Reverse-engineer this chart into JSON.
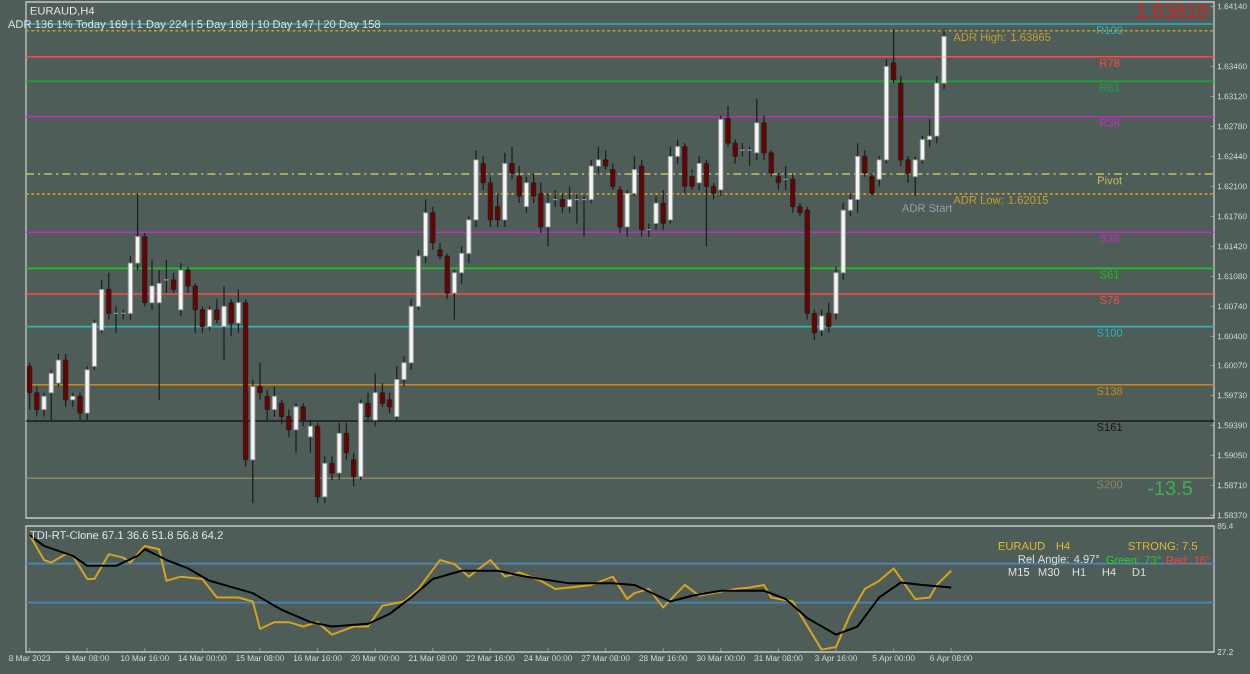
{
  "chart_data": [
    {
      "type": "candlestick",
      "title": "EURAUD,H4",
      "categories": [
        null,
        null,
        null,
        null,
        null,
        null,
        null,
        null,
        null,
        null,
        null,
        null,
        null,
        null,
        null,
        null,
        null,
        null,
        null,
        null,
        null,
        null,
        null,
        null,
        null,
        null,
        null,
        null,
        null,
        null,
        null,
        null,
        null,
        null,
        null,
        null,
        null,
        null,
        null,
        null,
        null,
        null,
        null,
        null,
        null,
        null,
        null,
        null,
        null,
        null,
        null,
        null,
        null,
        null,
        null,
        null,
        null,
        null,
        null,
        null,
        null,
        null,
        null,
        null,
        null,
        null,
        null,
        null,
        null,
        null,
        null,
        null,
        null,
        null,
        null,
        null,
        null,
        null,
        null,
        null,
        null,
        null,
        null,
        null,
        null,
        null,
        null,
        null,
        null,
        null,
        null,
        null,
        null,
        null,
        null,
        null,
        null,
        null,
        null,
        null,
        null,
        null,
        null,
        null,
        null,
        null,
        null,
        null,
        null,
        null,
        null,
        null,
        null,
        null,
        null,
        null,
        null,
        null,
        null,
        null,
        null,
        null,
        null,
        null,
        null,
        null,
        null,
        null,
        null,
        null,
        null,
        null,
        null,
        null,
        null,
        null,
        null,
        null,
        null,
        null,
        null,
        null,
        null,
        null,
        null,
        null,
        null,
        null,
        null,
        null,
        null,
        null,
        null,
        null,
        null,
        null,
        null,
        null,
        null,
        null,
        null,
        null,
        null,
        null,
        null
      ],
      "ohlc": [
        [
          1.6006,
          1.601,
          1.5957,
          1.5976
        ],
        [
          1.5976,
          1.5983,
          1.5949,
          1.5957
        ],
        [
          1.5957,
          1.5976,
          1.5949,
          1.5972
        ],
        [
          1.5976,
          1.6002,
          1.5945,
          1.5998
        ],
        [
          1.5987,
          1.602,
          1.5983,
          1.6013
        ],
        [
          1.6013,
          1.602,
          1.596,
          1.5968
        ],
        [
          1.5968,
          1.5976,
          1.596,
          1.5972
        ],
        [
          1.5972,
          1.5976,
          1.5945,
          1.5953
        ],
        [
          1.5953,
          1.6006,
          1.5945,
          1.6002
        ],
        [
          1.6006,
          1.6059,
          1.6002,
          1.6055
        ],
        [
          1.6047,
          1.6104,
          1.6044,
          1.6093
        ],
        [
          1.6093,
          1.6112,
          1.6059,
          1.6066
        ],
        [
          1.6066,
          1.6074,
          1.6044,
          1.6066
        ],
        [
          1.6066,
          1.607,
          1.6059,
          1.6066
        ],
        [
          1.6066,
          1.6131,
          1.6059,
          1.6123
        ],
        [
          1.6123,
          1.6202,
          1.6115,
          1.6153
        ],
        [
          1.6153,
          1.6157,
          1.6074,
          1.6078
        ],
        [
          1.6078,
          1.6127,
          1.607,
          1.6097
        ],
        [
          1.6078,
          1.6115,
          1.5968,
          1.61
        ],
        [
          1.6104,
          1.6127,
          1.6089,
          1.6104
        ],
        [
          1.6104,
          1.6112,
          1.6089,
          1.6093
        ],
        [
          1.607,
          1.6123,
          1.6063,
          1.6115
        ],
        [
          1.6115,
          1.6119,
          1.6089,
          1.6097
        ],
        [
          1.6097,
          1.61,
          1.6044,
          1.607
        ],
        [
          1.607,
          1.6074,
          1.6044,
          1.6051
        ],
        [
          1.6051,
          1.6074,
          1.6047,
          1.607
        ],
        [
          1.607,
          1.6082,
          1.6055,
          1.6059
        ],
        [
          1.6051,
          1.6097,
          1.6013,
          1.6074
        ],
        [
          1.6078,
          1.6082,
          1.604,
          1.6055
        ],
        [
          1.6055,
          1.6093,
          1.6044,
          1.6078
        ],
        [
          1.6078,
          1.6082,
          1.5892,
          1.59
        ],
        [
          1.59,
          1.5991,
          1.5851,
          1.5983
        ],
        [
          1.5983,
          1.601,
          1.5968,
          1.5976
        ],
        [
          1.5972,
          1.5979,
          1.5945,
          1.5957
        ],
        [
          1.5957,
          1.5983,
          1.5949,
          1.5972
        ],
        [
          1.5964,
          1.5968,
          1.5941,
          1.5949
        ],
        [
          1.5949,
          1.5957,
          1.5926,
          1.5934
        ],
        [
          1.5934,
          1.5964,
          1.5908,
          1.596
        ],
        [
          1.596,
          1.5964,
          1.5938,
          1.5945
        ],
        [
          1.5926,
          1.5945,
          1.5908,
          1.5938
        ],
        [
          1.5938,
          1.5942,
          1.5851,
          1.5858
        ],
        [
          1.5858,
          1.5904,
          1.5851,
          1.5896
        ],
        [
          1.5896,
          1.5904,
          1.5877,
          1.5885
        ],
        [
          1.5885,
          1.5942,
          1.5877,
          1.593
        ],
        [
          1.593,
          1.5942,
          1.59,
          1.5908
        ],
        [
          1.59,
          1.5908,
          1.587,
          1.5881
        ],
        [
          1.5881,
          1.5968,
          1.5877,
          1.5964
        ],
        [
          1.5964,
          1.5976,
          1.5945,
          1.5949
        ],
        [
          1.5945,
          1.5998,
          1.5938,
          1.5976
        ],
        [
          1.5976,
          1.5987,
          1.596,
          1.5964
        ],
        [
          1.5968,
          1.5976,
          1.5953,
          1.596
        ],
        [
          1.5949,
          1.6006,
          1.5945,
          1.5991
        ],
        [
          1.5991,
          1.6017,
          1.5983,
          1.601
        ],
        [
          1.601,
          1.6082,
          1.6002,
          1.6074
        ],
        [
          1.6074,
          1.6138,
          1.607,
          1.6131
        ],
        [
          1.6131,
          1.6195,
          1.6123,
          1.618
        ],
        [
          1.618,
          1.6187,
          1.6138,
          1.6146
        ],
        [
          1.6138,
          1.6146,
          1.6127,
          1.6131
        ],
        [
          1.6131,
          1.6134,
          1.6082,
          1.6089
        ],
        [
          1.6089,
          1.6115,
          1.6059,
          1.6112
        ],
        [
          1.6112,
          1.6142,
          1.61,
          1.6134
        ],
        [
          1.6134,
          1.6176,
          1.6123,
          1.6172
        ],
        [
          1.6172,
          1.6251,
          1.6164,
          1.624
        ],
        [
          1.6236,
          1.6244,
          1.6206,
          1.6214
        ],
        [
          1.6214,
          1.6221,
          1.6164,
          1.6172
        ],
        [
          1.6187,
          1.6202,
          1.6164,
          1.6172
        ],
        [
          1.6172,
          1.6248,
          1.6164,
          1.6236
        ],
        [
          1.6236,
          1.6255,
          1.6218,
          1.6225
        ],
        [
          1.6221,
          1.6233,
          1.6191,
          1.6199
        ],
        [
          1.6187,
          1.6221,
          1.618,
          1.6214
        ],
        [
          1.6214,
          1.6225,
          1.6191,
          1.6199
        ],
        [
          1.6202,
          1.6214,
          1.6157,
          1.6164
        ],
        [
          1.6164,
          1.6202,
          1.6142,
          1.6191
        ],
        [
          1.6195,
          1.6206,
          1.6187,
          1.6195
        ],
        [
          1.6195,
          1.6202,
          1.618,
          1.6187
        ],
        [
          1.6187,
          1.621,
          1.618,
          1.6195
        ],
        [
          1.6195,
          1.6202,
          1.6168,
          1.6195
        ],
        [
          1.6195,
          1.6199,
          1.6153,
          1.6195
        ],
        [
          1.6195,
          1.624,
          1.6191,
          1.6233
        ],
        [
          1.6233,
          1.6255,
          1.6225,
          1.624
        ],
        [
          1.624,
          1.6251,
          1.6229,
          1.6233
        ],
        [
          1.6229,
          1.6236,
          1.6206,
          1.621
        ],
        [
          1.6206,
          1.621,
          1.6157,
          1.6164
        ],
        [
          1.6164,
          1.6206,
          1.6153,
          1.6202
        ],
        [
          1.6202,
          1.6244,
          1.6199,
          1.6229
        ],
        [
          1.6233,
          1.624,
          1.6153,
          1.6161
        ],
        [
          1.6161,
          1.6168,
          1.6153,
          1.6161
        ],
        [
          1.6168,
          1.6199,
          1.6161,
          1.6191
        ],
        [
          1.6191,
          1.6206,
          1.6161,
          1.6168
        ],
        [
          1.6172,
          1.6255,
          1.6168,
          1.6244
        ],
        [
          1.6244,
          1.6263,
          1.6236,
          1.6255
        ],
        [
          1.6255,
          1.6259,
          1.6202,
          1.621
        ],
        [
          1.6221,
          1.6229,
          1.6206,
          1.621
        ],
        [
          1.6214,
          1.6244,
          1.6206,
          1.6236
        ],
        [
          1.6236,
          1.624,
          1.6142,
          1.621
        ],
        [
          1.621,
          1.6214,
          1.6195,
          1.6202
        ],
        [
          1.6206,
          1.629,
          1.6199,
          1.6286
        ],
        [
          1.6287,
          1.6301,
          1.6255,
          1.6259
        ],
        [
          1.6259,
          1.6263,
          1.6236,
          1.6244
        ],
        [
          1.6251,
          1.6259,
          1.6244,
          1.6251
        ],
        [
          1.6251,
          1.6255,
          1.6233,
          1.6251
        ],
        [
          1.6248,
          1.6309,
          1.624,
          1.6282
        ],
        [
          1.6282,
          1.629,
          1.624,
          1.6248
        ],
        [
          1.6248,
          1.6251,
          1.6221,
          1.6225
        ],
        [
          1.6221,
          1.6225,
          1.6206,
          1.6214
        ],
        [
          1.6218,
          1.6233,
          1.6206,
          1.6218
        ],
        [
          1.6218,
          1.6225,
          1.618,
          1.6187
        ],
        [
          1.6187,
          1.6191,
          1.6176,
          1.618
        ],
        [
          1.6183,
          1.6187,
          1.6059,
          1.6066
        ],
        [
          1.6066,
          1.607,
          1.6036,
          1.6044
        ],
        [
          1.6047,
          1.607,
          1.604,
          1.6063
        ],
        [
          1.6066,
          1.6078,
          1.6044,
          1.6051
        ],
        [
          1.6066,
          1.6119,
          1.6059,
          1.6112
        ],
        [
          1.6112,
          1.6191,
          1.6104,
          1.6183
        ],
        [
          1.6183,
          1.6202,
          1.6176,
          1.6195
        ],
        [
          1.6195,
          1.6259,
          1.618,
          1.6244
        ],
        [
          1.6244,
          1.6251,
          1.6221,
          1.6225
        ],
        [
          1.6221,
          1.6225,
          1.6199,
          1.6202
        ],
        [
          1.6218,
          1.6244,
          1.621,
          1.624
        ],
        [
          1.624,
          1.6354,
          1.6236,
          1.6346
        ],
        [
          1.635,
          1.6388,
          1.6327,
          1.6331
        ],
        [
          1.6327,
          1.6335,
          1.6233,
          1.624
        ],
        [
          1.624,
          1.6244,
          1.6214,
          1.6225
        ],
        [
          1.6221,
          1.6244,
          1.6199,
          1.624
        ],
        [
          1.624,
          1.6267,
          1.6236,
          1.6263
        ],
        [
          1.6263,
          1.6286,
          1.6255,
          1.6267
        ],
        [
          1.6267,
          1.6335,
          1.6259,
          1.6327
        ],
        [
          1.6327,
          1.6388,
          1.632,
          1.638
        ],
        null,
        null,
        null,
        null,
        null,
        null,
        null,
        null,
        null,
        null,
        null,
        null,
        null,
        null,
        null,
        null,
        null,
        null,
        null,
        null,
        null,
        null,
        null,
        null,
        null,
        null,
        null,
        null,
        null,
        null,
        null,
        null,
        null,
        null,
        null,
        null,
        null
      ],
      "ylim": [
        1.5834,
        1.6419
      ],
      "yticks": [
        {
          "value": 1.6414,
          "label": "1.64140"
        },
        {
          "value": 1.6346,
          "label": "1.63460"
        },
        {
          "value": 1.6312,
          "label": "1.63120"
        },
        {
          "value": 1.6278,
          "label": "1.62780"
        },
        {
          "value": 1.6244,
          "label": "1.62440"
        },
        {
          "value": 1.621,
          "label": "1.62100"
        },
        {
          "value": 1.6176,
          "label": "1.61760"
        },
        {
          "value": 1.6142,
          "label": "1.61420"
        },
        {
          "value": 1.6108,
          "label": "1.61080"
        },
        {
          "value": 1.6074,
          "label": "1.60740"
        },
        {
          "value": 1.604,
          "label": "1.60400"
        },
        {
          "value": 1.6007,
          "label": "1.60070"
        },
        {
          "value": 1.5973,
          "label": "1.59730"
        },
        {
          "value": 1.5939,
          "label": "1.59390"
        },
        {
          "value": 1.5905,
          "label": "1.59050"
        },
        {
          "value": 1.5871,
          "label": "1.58710"
        },
        {
          "value": 1.5837,
          "label": "1.58370"
        }
      ],
      "tick_labels": "y",
      "ref_lines": [
        {
          "axis": "y",
          "value": 1.6394,
          "label": "R100",
          "color": "#2fb5b5"
        },
        {
          "axis": "y",
          "value": 1.63865,
          "label": "ADR High: 1.63865",
          "color": "#c8a030",
          "line_style": "dotted"
        },
        {
          "axis": "y",
          "value": 1.6357,
          "label": "R78",
          "color": "#ff4a4a"
        },
        {
          "axis": "y",
          "value": 1.6329,
          "label": "R61",
          "color": "#22a03a"
        },
        {
          "axis": "y",
          "value": 1.6289,
          "label": "R38",
          "color": "#c030c0"
        },
        {
          "axis": "y",
          "value": 1.6224,
          "label": "Pivot",
          "color": "#c8c060",
          "line_style": "dashed"
        },
        {
          "axis": "y",
          "value": 1.62015,
          "label": "ADR Low: 1.62015",
          "color": "#c8a030",
          "line_style": "dotted"
        },
        {
          "axis": "y",
          "value": 1.6158,
          "label": "S38",
          "color": "#c030c0"
        },
        {
          "axis": "y",
          "value": 1.6117,
          "label": "S61",
          "color": "#22c022"
        },
        {
          "axis": "y",
          "value": 1.6088,
          "label": "S78",
          "color": "#ff4a4a"
        },
        {
          "axis": "y",
          "value": 1.6051,
          "label": "S100",
          "color": "#2fb5b5"
        },
        {
          "axis": "y",
          "value": 1.5985,
          "label": "S138",
          "color": "#c88a1e"
        },
        {
          "axis": "y",
          "value": 1.5944,
          "label": "S161",
          "color": "#1a1a1a"
        },
        {
          "axis": "y",
          "value": 1.5879,
          "label": "S200",
          "color": "#8a8a6a"
        }
      ],
      "annotations": [
        "ADR 136 1% Today 169 | 1 Day 224 | 5 Day 188 | 10 Day 147 | 20 Day 158",
        "ADR Start",
        "1.63818",
        "-13.5"
      ]
    },
    {
      "type": "line",
      "title": "TDI-RT-Clone 67.1 36.6 51.8 56.8 64.2",
      "categories": [
        "8 Mar 2023",
        null,
        null,
        null,
        null,
        null,
        null,
        null,
        "9 Mar 08:00",
        null,
        null,
        null,
        null,
        null,
        null,
        null,
        "10 Mar 16:00",
        null,
        null,
        null,
        null,
        null,
        null,
        null,
        "14 Mar 00:00",
        null,
        null,
        null,
        null,
        null,
        null,
        null,
        "15 Mar 08:00",
        null,
        null,
        null,
        null,
        null,
        null,
        null,
        "16 Mar 16:00",
        null,
        null,
        null,
        null,
        null,
        null,
        null,
        "20 Mar 00:00",
        null,
        null,
        null,
        null,
        null,
        null,
        null,
        "21 Mar 08:00",
        null,
        null,
        null,
        null,
        null,
        null,
        null,
        "22 Mar 16:00",
        null,
        null,
        null,
        null,
        null,
        null,
        null,
        "24 Mar 00:00",
        null,
        null,
        null,
        null,
        null,
        null,
        null,
        "27 Mar 08:00",
        null,
        null,
        null,
        null,
        null,
        null,
        null,
        "28 Mar 16:00",
        null,
        null,
        null,
        null,
        null,
        null,
        null,
        "30 Mar 00:00",
        null,
        null,
        null,
        null,
        null,
        null,
        null,
        "31 Mar 08:00",
        null,
        null,
        null,
        null,
        null,
        null,
        null,
        "3 Apr 16:00",
        null,
        null,
        null,
        null,
        null,
        null,
        null,
        "5 Apr 00:00",
        null,
        null,
        null,
        null,
        null,
        null,
        null,
        "6 Apr 08:00",
        null,
        null,
        null,
        null,
        null,
        null,
        null,
        null,
        null,
        null,
        null,
        null,
        null,
        null,
        null,
        null,
        null,
        null,
        null,
        null,
        null,
        null,
        null,
        null,
        null,
        null,
        null,
        null,
        null,
        null,
        null,
        null,
        null,
        null,
        null,
        null
      ],
      "series": [
        {
          "color": "#d9a21f",
          "values": [
            81.2,
            null,
            69.7,
            68.5,
            null,
            72.4,
            71.6,
            null,
            60.9,
            60.9,
            null,
            72.4,
            null,
            70.8,
            68.5,
            null,
            76.2,
            null,
            74.7,
            60.1,
            null,
            62.0,
            null,
            null,
            60.9,
            null,
            52.4,
            null,
            null,
            52.4,
            null,
            50.5,
            37.9,
            null,
            41.0,
            null,
            41.0,
            null,
            39.0,
            null,
            41.0,
            null,
            35.2,
            null,
            null,
            39.0,
            null,
            39.0,
            null,
            48.6,
            null,
            null,
            50.5,
            null,
            56.3,
            null,
            null,
            69.7,
            null,
            67.8,
            null,
            62.0,
            null,
            null,
            69.7,
            null,
            62.0,
            null,
            63.9,
            null,
            null,
            60.1,
            null,
            56.3,
            null,
            57.0,
            null,
            null,
            58.2,
            null,
            null,
            62.0,
            null,
            51.7,
            54.4,
            null,
            56.3,
            null,
            47.8,
            null,
            null,
            58.2,
            null,
            53.2,
            null,
            54.4,
            null,
            null,
            56.3,
            null,
            57.0,
            null,
            58.2,
            52.4,
            null,
            null,
            50.5,
            44.8,
            null,
            null,
            28.3,
            null,
            29.5,
            null,
            44.8,
            null,
            56.3,
            null,
            60.1,
            null,
            65.8,
            null,
            null,
            51.7,
            null,
            52.4,
            58.2,
            null,
            64.7,
            null,
            null,
            null,
            null,
            null,
            null,
            null,
            null,
            null,
            null,
            null,
            null,
            null,
            null,
            null,
            null,
            null,
            null,
            null,
            null,
            null,
            null,
            null,
            null,
            null,
            null,
            null,
            null,
            null,
            null,
            null,
            null,
            null,
            null,
            null,
            null
          ]
        },
        {
          "color": "#000000",
          "values": [
            81.2,
            null,
            76.2,
            null,
            null,
            null,
            71.6,
            null,
            67.0,
            null,
            null,
            null,
            67.0,
            null,
            null,
            71.6,
            74.7,
            null,
            null,
            69.7,
            null,
            null,
            65.8,
            null,
            null,
            60.1,
            null,
            null,
            null,
            null,
            null,
            54.4,
            null,
            null,
            null,
            46.7,
            null,
            null,
            null,
            41.0,
            null,
            null,
            39.0,
            null,
            null,
            null,
            null,
            40.2,
            null,
            null,
            44.8,
            null,
            null,
            52.4,
            null,
            null,
            60.9,
            null,
            null,
            null,
            64.7,
            null,
            null,
            null,
            null,
            64.7,
            null,
            null,
            null,
            62.0,
            null,
            null,
            null,
            null,
            null,
            58.9,
            null,
            null,
            null,
            null,
            null,
            58.9,
            null,
            null,
            58.2,
            null,
            null,
            null,
            null,
            50.5,
            null,
            null,
            53.2,
            null,
            null,
            null,
            55.5,
            null,
            null,
            null,
            null,
            null,
            55.5,
            null,
            null,
            51.7,
            null,
            null,
            42.9,
            null,
            null,
            null,
            35.2,
            null,
            null,
            39.0,
            null,
            null,
            52.4,
            null,
            null,
            59.3,
            null,
            null,
            58.2,
            null,
            null,
            null,
            57.0,
            null,
            null,
            null,
            null,
            null,
            null,
            null,
            null,
            null,
            null,
            null,
            null,
            null,
            null,
            null,
            null,
            null,
            null,
            null,
            null,
            null,
            null,
            null,
            null,
            null,
            null,
            null,
            null,
            null,
            null,
            null,
            null,
            null,
            null,
            null,
            null
          ]
        }
      ],
      "ylim": [
        27.2,
        85.4
      ],
      "yticks": [
        27.2,
        85.4
      ],
      "ref_lines": [
        {
          "axis": "y",
          "value": 68,
          "color": "#4a86b4"
        },
        {
          "axis": "y",
          "value": 50,
          "color": "#4a86b4"
        }
      ],
      "annotations": [
        "EURAUD",
        "H4",
        "STRONG: 7.5",
        "Rel Angle: 4.97°",
        "Green: 73°",
        "Red: 16°",
        "M15",
        "M30",
        "H1",
        "H4",
        "D1"
      ]
    }
  ]
}
